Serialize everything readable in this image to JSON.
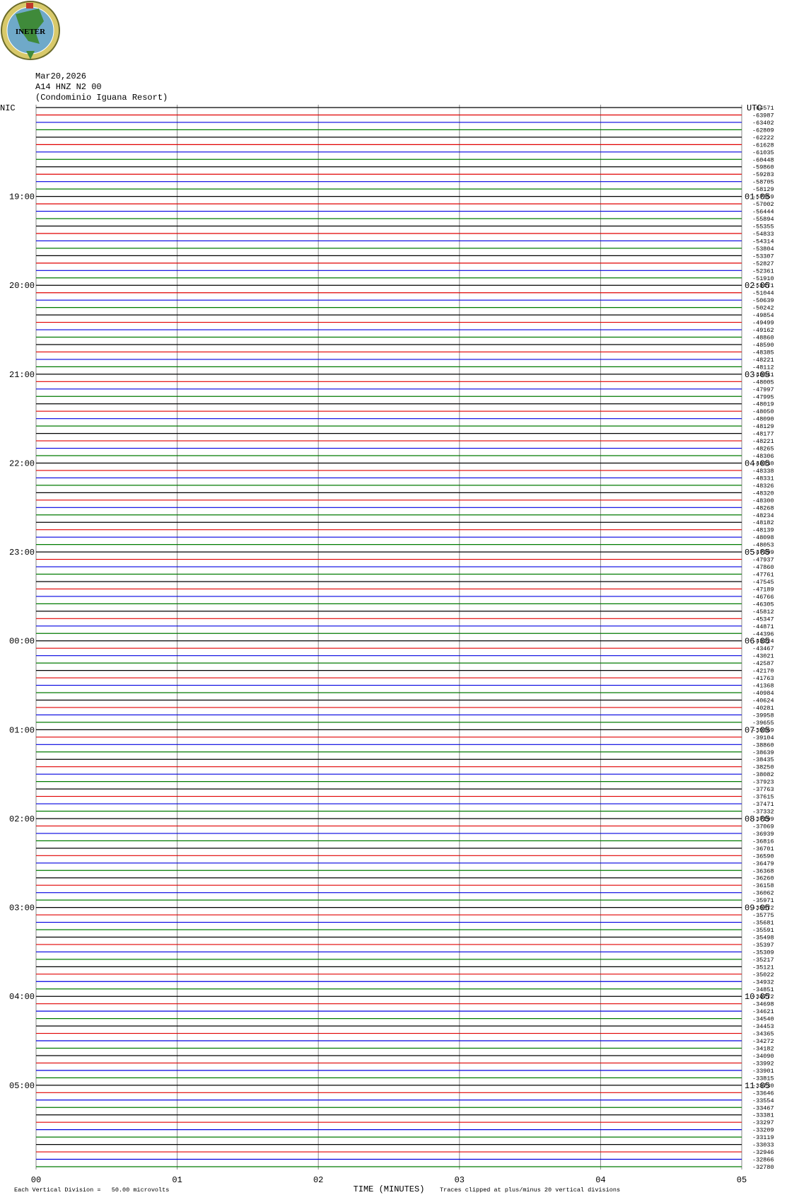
{
  "logo": "INETER",
  "header": {
    "date": "Mar20,2026",
    "station": "A14 HNZ N2 00",
    "site": "(Condominio Iguana Resort)"
  },
  "left_axis": {
    "title": "NIC",
    "labels": [
      "19:00",
      "20:00",
      "21:00",
      "22:00",
      "23:00",
      "00:00",
      "01:00",
      "02:00",
      "03:00",
      "04:00",
      "05:00"
    ]
  },
  "right_axis": {
    "title": "UTC",
    "labels": [
      "01:05",
      "02:05",
      "03:05",
      "04:05",
      "05:05",
      "06:05",
      "07:05",
      "08:05",
      "09:05",
      "10:05",
      "11:05"
    ]
  },
  "trace_labels": [
    "-64571",
    "-63987",
    "-63402",
    "-62809",
    "-62222",
    "-61628",
    "-61035",
    "-60448",
    "-59860",
    "-59283",
    "-58705",
    "-58129",
    "-57559",
    "-57002",
    "-56444",
    "-55894",
    "-55355",
    "-54833",
    "-54314",
    "-53804",
    "-53307",
    "-52827",
    "-52361",
    "-51910",
    "-51471",
    "-51044",
    "-50639",
    "-50242",
    "-49854",
    "-49499",
    "-49162",
    "-48860",
    "-48590",
    "-48385",
    "-48221",
    "-48112",
    "-48041",
    "-48005",
    "-47997",
    "-47995",
    "-48019",
    "-48050",
    "-48090",
    "-48129",
    "-48177",
    "-48221",
    "-48265",
    "-48306",
    "-48330",
    "-48338",
    "-48331",
    "-48326",
    "-48320",
    "-48300",
    "-48268",
    "-48234",
    "-48182",
    "-48139",
    "-48098",
    "-48053",
    "-47999",
    "-47937",
    "-47860",
    "-47761",
    "-47545",
    "-47189",
    "-46766",
    "-46305",
    "-45812",
    "-45347",
    "-44871",
    "-44396",
    "-43924",
    "-43467",
    "-43021",
    "-42587",
    "-42170",
    "-41763",
    "-41368",
    "-40984",
    "-40624",
    "-40281",
    "-39958",
    "-39655",
    "-39369",
    "-39104",
    "-38860",
    "-38639",
    "-38435",
    "-38250",
    "-38082",
    "-37923",
    "-37763",
    "-37615",
    "-37471",
    "-37332",
    "-37199",
    "-37069",
    "-36939",
    "-36816",
    "-36701",
    "-36590",
    "-36479",
    "-36368",
    "-36260",
    "-36158",
    "-36062",
    "-35971",
    "-35872",
    "-35775",
    "-35681",
    "-35591",
    "-35498",
    "-35397",
    "-35309",
    "-35217",
    "-35121",
    "-35022",
    "-34932",
    "-34851",
    "-34772",
    "-34698",
    "-34621",
    "-34540",
    "-34453",
    "-34365",
    "-34272",
    "-34182",
    "-34090",
    "-33992",
    "-33901",
    "-33815",
    "-33730",
    "-33646",
    "-33554",
    "-33467",
    "-33381",
    "-33297",
    "-33209",
    "-33119",
    "-33033",
    "-32946",
    "-32866",
    "-32780"
  ],
  "x_axis": {
    "labels": [
      "00",
      "01",
      "02",
      "03",
      "04",
      "05"
    ],
    "title": "TIME (MINUTES)"
  },
  "footer": {
    "scale": "Each Vertical Division =   50.00 microvolts",
    "clip": "Traces clipped at plus/minus 20 vertical divisions"
  }
}
